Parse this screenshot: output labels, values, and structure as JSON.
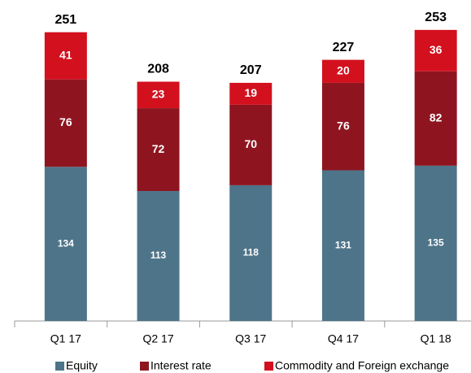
{
  "chart_data": {
    "type": "stacked_bar",
    "categories": [
      "Q1 17",
      "Q2 17",
      "Q3 17",
      "Q4 17",
      "Q1 18"
    ],
    "series": [
      {
        "name": "Equity",
        "color": "#4e7489",
        "values": [
          134,
          113,
          118,
          131,
          135
        ]
      },
      {
        "name": "Interest rate",
        "color": "#8e1520",
        "values": [
          76,
          72,
          70,
          76,
          82
        ]
      },
      {
        "name": "Commodity and Foreign exchange",
        "color": "#d3101e",
        "values": [
          41,
          23,
          19,
          20,
          36
        ]
      }
    ],
    "totals": [
      251,
      208,
      207,
      227,
      253
    ],
    "ylim": [
      0,
      279
    ]
  }
}
